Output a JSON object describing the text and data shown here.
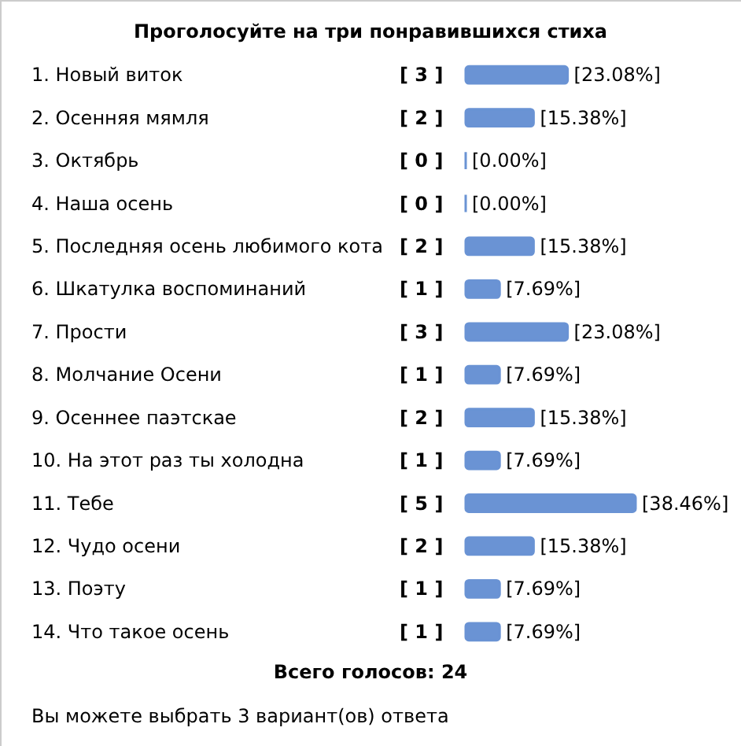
{
  "chart_data": {
    "type": "bar",
    "orientation": "horizontal",
    "title": "Проголосуйте на три понравившихся стиха",
    "categories": [
      "1. Новый виток",
      "2. Осенняя мямля",
      "3. Октябрь",
      "4. Наша осень",
      "5. Последняя осень любимого кота",
      "6. Шкатулка воспоминаний",
      "7. Прости",
      "8. Молчание Осени",
      "9. Осеннее паэтскае",
      "10. На этот раз ты холодна",
      "11. Тебе",
      "12. Чудо осени",
      "13. Поэту",
      "14. Что такое осень"
    ],
    "values": [
      23.08,
      15.38,
      0,
      0,
      15.38,
      7.69,
      23.08,
      7.69,
      15.38,
      7.69,
      38.46,
      15.38,
      7.69,
      7.69
    ],
    "value_labels": [
      "[23.08%]",
      "[15.38%]",
      "[0.00%]",
      "[0.00%]",
      "[15.38%]",
      "[7.69%]",
      "[23.08%]",
      "[7.69%]",
      "[15.38%]",
      "[7.69%]",
      "[38.46%]",
      "[15.38%]",
      "[7.69%]",
      "[7.69%]"
    ],
    "color": "#6a93d4",
    "annotations": [
      "[ 3 ]",
      "[ 2 ]",
      "[ 0 ]",
      "[ 0 ]",
      "[ 2 ]",
      "[ 1 ]",
      "[ 3 ]",
      "[ 1 ]",
      "[ 2 ]",
      "[ 1 ]",
      "[ 5 ]",
      "[ 2 ]",
      "[ 1 ]",
      "[ 1 ]",
      "Всего голосов: 24",
      "Вы можете выбрать 3 вариант(ов) ответа"
    ]
  }
}
